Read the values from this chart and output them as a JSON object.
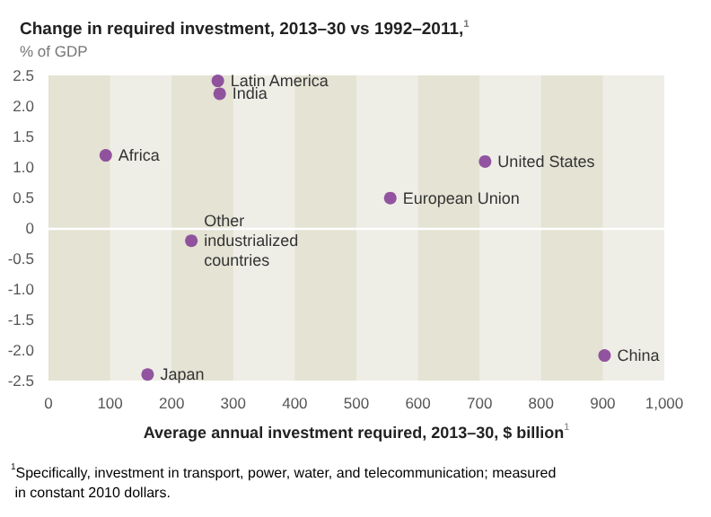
{
  "chart_data": {
    "type": "scatter",
    "title": "Change in required investment, 2013–30 vs 1992–2011,$^{1}$",
    "subtitle": "% of GDP",
    "xlabel": "Average annual investment required, 2013–30, $ billion$^{1}$",
    "x": [
      275,
      278,
      93,
      232,
      161,
      555,
      709,
      903
    ],
    "series": [
      {
        "color": "#7b2d8e",
        "values": [
          2.41,
          2.2,
          1.19,
          -0.21,
          -2.4,
          0.49,
          1.09,
          -2.09
        ]
      }
    ],
    "marker": "circle",
    "grid": false,
    "xlim": [
      0,
      1000
    ],
    "xticks": [
      0,
      100,
      200,
      300,
      400,
      500,
      600,
      700,
      800,
      900,
      {
        "value": 1000,
        "label": "1,000"
      }
    ],
    "ylim": [
      -2.5,
      2.5
    ],
    "yticks": [
      -2.5,
      {
        "value": -2,
        "label": "-2.0"
      },
      -1.5,
      {
        "value": -1,
        "label": "-1.0"
      },
      -0.5,
      0,
      0.5,
      {
        "value": 1,
        "label": "1.0"
      },
      1.5,
      {
        "value": 2,
        "label": "2.0"
      },
      2.5
    ],
    "bands": [
      {
        "axis": "x",
        "from": 0,
        "to": 100,
        "color": "#e4e3d4"
      },
      {
        "axis": "x",
        "from": 200,
        "to": 300,
        "color": "#e4e3d4"
      },
      {
        "axis": "x",
        "from": 400,
        "to": 500,
        "color": "#e4e3d4"
      },
      {
        "axis": "x",
        "from": 600,
        "to": 700,
        "color": "#e4e3d4"
      },
      {
        "axis": "x",
        "from": 800,
        "to": 900,
        "color": "#e4e3d4"
      }
    ],
    "ref_lines": [
      {
        "axis": "y",
        "value": 0,
        "color": "#ffffff"
      }
    ],
    "annotations": [
      {
        "text": "Latin America",
        "x": 275,
        "y": 2.41
      },
      {
        "text": "India",
        "x": 278,
        "y": 2.2
      },
      {
        "text": "Africa",
        "x": 93,
        "y": 1.19
      },
      {
        "text": "Other industrialized countries",
        "x": 232,
        "y": -0.21
      },
      {
        "text": "Japan",
        "x": 161,
        "y": -2.4
      },
      {
        "text": "European Union",
        "x": 555,
        "y": 0.49
      },
      {
        "text": "United States",
        "x": 709,
        "y": 1.09
      },
      {
        "text": "China",
        "x": 903,
        "y": -2.09
      },
      "$^{1}$Specifically, investment in transport, power, water, and telecommunication; measured in constant 2010 dollars."
    ]
  }
}
